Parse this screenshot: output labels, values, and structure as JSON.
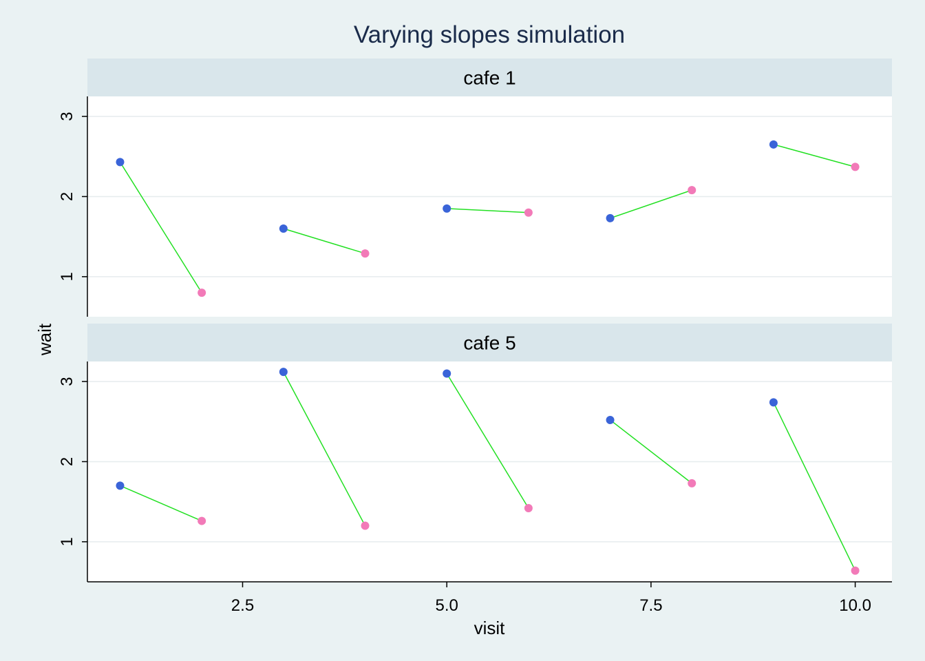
{
  "chart_data": {
    "type": "scatter",
    "title": "Varying slopes simulation",
    "xlabel": "visit",
    "ylabel": "wait",
    "xlim": [
      0.6,
      10.45
    ],
    "ylim": [
      0.5,
      3.25
    ],
    "xticks": [
      2.5,
      5.0,
      7.5,
      10.0
    ],
    "xtick_labels": [
      "2.5",
      "5.0",
      "7.5",
      "10.0"
    ],
    "yticks": [
      1,
      2,
      3
    ],
    "ytick_labels": [
      "1",
      "2",
      "3"
    ],
    "grid": true,
    "colors": {
      "background": "#eaf2f3",
      "panel": "#ffffff",
      "strip": "#d9e6eb",
      "grid": "#e6ecee",
      "line": "#22e022",
      "point_odd": "#3a64d8",
      "point_even": "#f27ab8"
    },
    "panels": [
      {
        "label": "cafe 1",
        "points": [
          {
            "x": 1,
            "y": 2.43
          },
          {
            "x": 2,
            "y": 0.8
          },
          {
            "x": 3,
            "y": 1.6
          },
          {
            "x": 4,
            "y": 1.29
          },
          {
            "x": 5,
            "y": 1.85
          },
          {
            "x": 6,
            "y": 1.8
          },
          {
            "x": 7,
            "y": 1.73
          },
          {
            "x": 8,
            "y": 2.08
          },
          {
            "x": 9,
            "y": 2.65
          },
          {
            "x": 10,
            "y": 2.37
          }
        ]
      },
      {
        "label": "cafe 5",
        "points": [
          {
            "x": 1,
            "y": 1.7
          },
          {
            "x": 2,
            "y": 1.26
          },
          {
            "x": 3,
            "y": 3.12
          },
          {
            "x": 4,
            "y": 1.2
          },
          {
            "x": 5,
            "y": 3.1
          },
          {
            "x": 6,
            "y": 1.42
          },
          {
            "x": 7,
            "y": 2.52
          },
          {
            "x": 8,
            "y": 1.73
          },
          {
            "x": 9,
            "y": 2.74
          },
          {
            "x": 10,
            "y": 0.64
          }
        ]
      }
    ]
  }
}
